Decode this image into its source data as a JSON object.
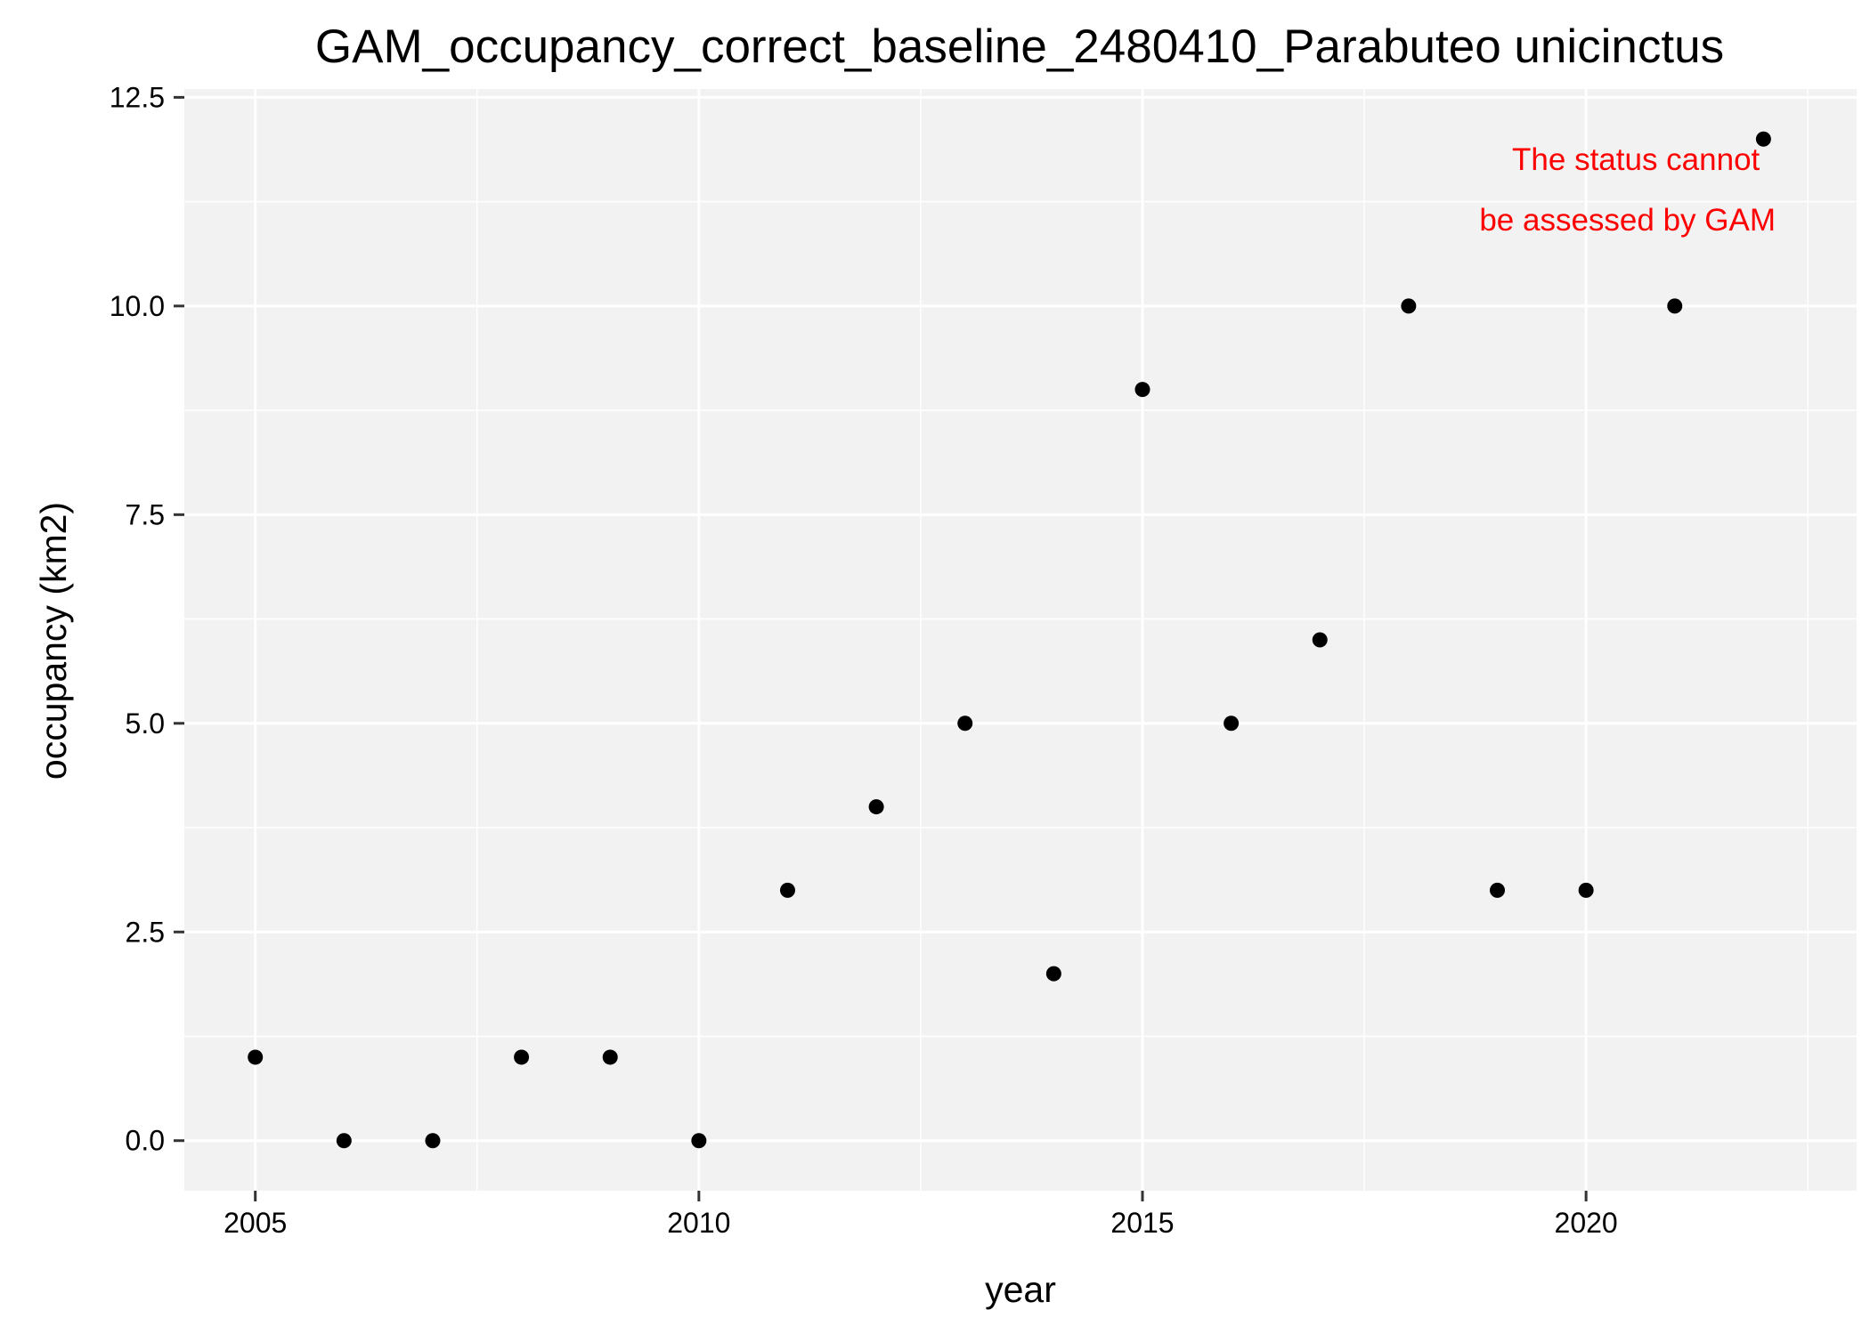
{
  "chart_data": {
    "type": "scatter",
    "title": "GAM_occupancy_correct_baseline_2480410_Parabuteo unicinctus",
    "xlabel": "year",
    "ylabel": "occupancy (km2)",
    "xlim": [
      2004.2,
      2023.05
    ],
    "ylim": [
      -0.6,
      12.6
    ],
    "x_ticks": [
      2005,
      2010,
      2015,
      2020
    ],
    "x_tick_labels": [
      "2005",
      "2010",
      "2015",
      "2020"
    ],
    "y_ticks": [
      0,
      2.5,
      5,
      7.5,
      10,
      12.5
    ],
    "y_tick_labels": [
      "0.0",
      "2.5",
      "5.0",
      "7.5",
      "10.0",
      "12.5"
    ],
    "grid": true,
    "legend": "none",
    "colors": {
      "panel_background": "#f2f2f2",
      "grid": "#ffffff",
      "points": "#000000",
      "annotation": "#ff0000"
    },
    "annotation": {
      "lines": [
        "The status cannot",
        "be assessed by GAM"
      ],
      "placement": "top-right"
    },
    "series": [
      {
        "x": [
          2005,
          2006,
          2007,
          2008,
          2009,
          2010,
          2011,
          2012,
          2013,
          2014,
          2015,
          2016,
          2017,
          2018,
          2019,
          2020,
          2021,
          2022
        ],
        "y": [
          1,
          0,
          0,
          1,
          1,
          0,
          3,
          4,
          5,
          2,
          9,
          5,
          6,
          10,
          3,
          3,
          10,
          12
        ]
      }
    ]
  }
}
